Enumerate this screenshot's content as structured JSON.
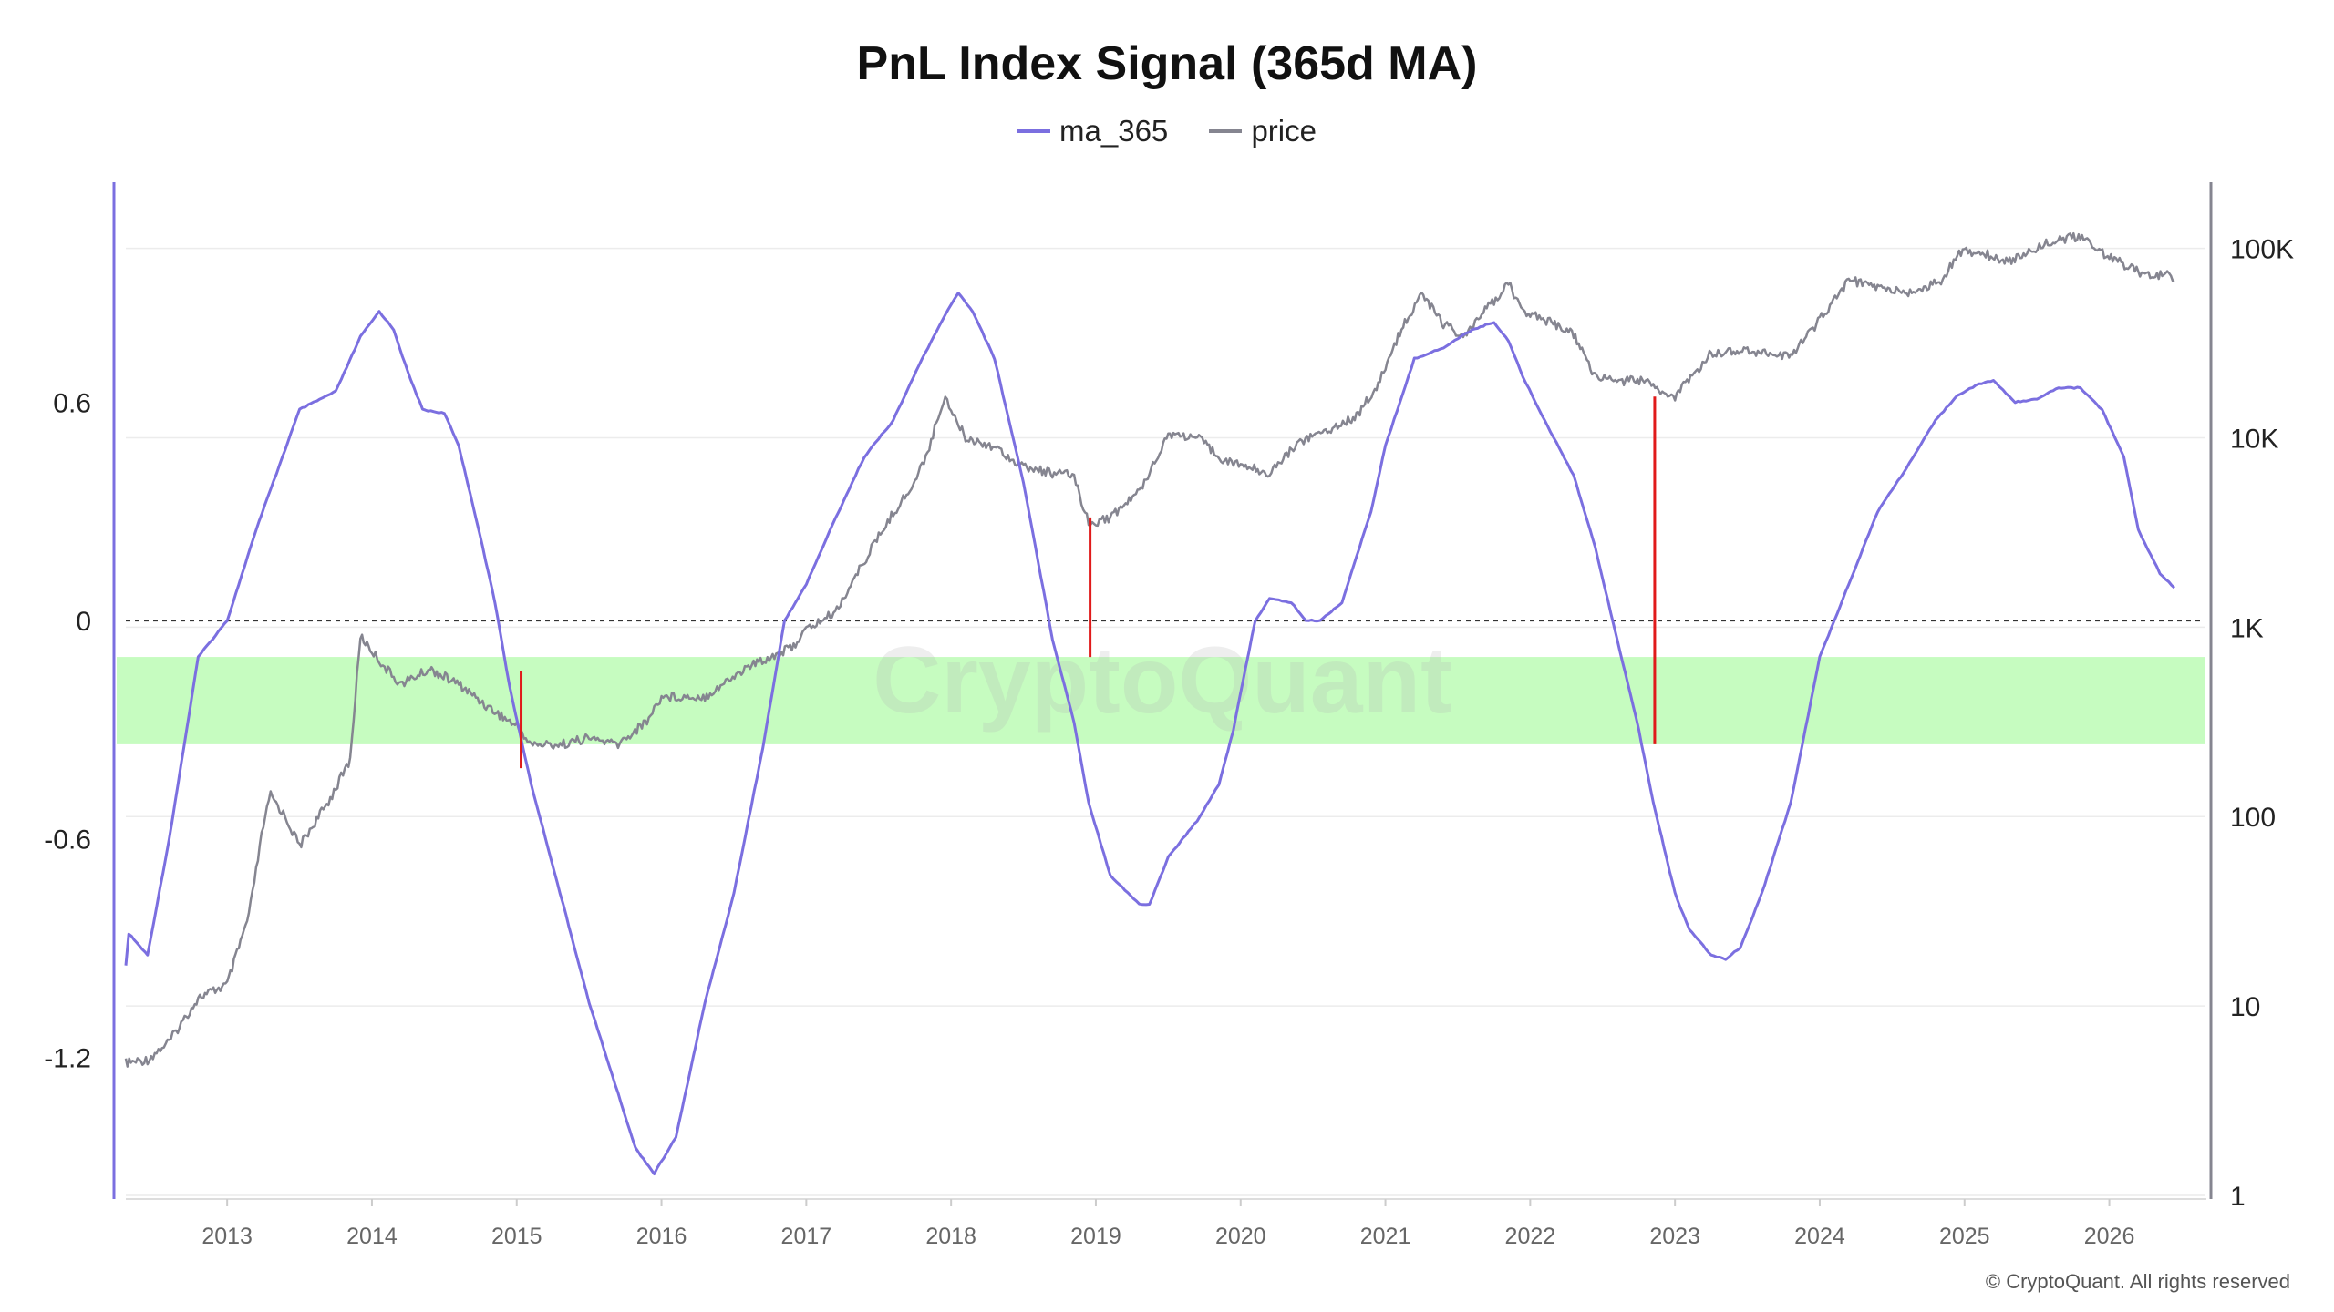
{
  "title": "PnL Index Signal (365d MA)",
  "legend": [
    {
      "name": "ma_365",
      "color": "#7b6fe0"
    },
    {
      "name": "price",
      "color": "#858590"
    }
  ],
  "watermark": "CryptoQuant",
  "copyright": "© CryptoQuant. All rights reserved",
  "colors": {
    "ma": "#7b6fe0",
    "price": "#858590",
    "band": "#c6fcc0",
    "signal": "#e01a1a"
  },
  "chart_data": {
    "type": "line",
    "x_ticks": [
      "2013",
      "2014",
      "2015",
      "2016",
      "2017",
      "2018",
      "2019",
      "2020",
      "2021",
      "2022",
      "2023",
      "2024",
      "2025",
      "2026"
    ],
    "y_left_ticks": [
      "0.6",
      "0",
      "-0.6",
      "-1.2"
    ],
    "y_right_ticks": [
      "100K",
      "10K",
      "1K",
      "100",
      "10",
      "1"
    ],
    "y_left_range": [
      -1.58,
      1.18
    ],
    "y_right_range": [
      1,
      200000
    ],
    "y_right_scale": "log",
    "zero_line": 0,
    "band": [
      -0.34,
      -0.1
    ],
    "grid": "horizontal",
    "legend_position": "top-center",
    "series": [
      {
        "name": "ma_365",
        "axis": "left",
        "x": [
          2012.3,
          2012.32,
          2012.45,
          2012.6,
          2012.8,
          2013.0,
          2013.2,
          2013.5,
          2013.6,
          2013.75,
          2013.92,
          2014.05,
          2014.15,
          2014.25,
          2014.35,
          2014.5,
          2014.6,
          2014.72,
          2014.85,
          2014.95,
          2015.1,
          2015.3,
          2015.5,
          2015.7,
          2015.82,
          2015.95,
          2016.1,
          2016.3,
          2016.5,
          2016.7,
          2016.85,
          2017.0,
          2017.2,
          2017.4,
          2017.6,
          2017.8,
          2018.0,
          2018.05,
          2018.15,
          2018.3,
          2018.5,
          2018.7,
          2018.85,
          2018.95,
          2019.1,
          2019.3,
          2019.37,
          2019.5,
          2019.7,
          2019.85,
          2019.95,
          2020.1,
          2020.2,
          2020.35,
          2020.45,
          2020.55,
          2020.7,
          2020.9,
          2021.0,
          2021.1,
          2021.2,
          2021.4,
          2021.6,
          2021.75,
          2021.85,
          2021.95,
          2022.1,
          2022.3,
          2022.45,
          2022.6,
          2022.75,
          2022.85,
          2023.0,
          2023.1,
          2023.25,
          2023.35,
          2023.45,
          2023.6,
          2023.8,
          2024.0,
          2024.2,
          2024.4,
          2024.6,
          2024.8,
          2024.95,
          2025.1,
          2025.2,
          2025.35,
          2025.5,
          2025.65,
          2025.8,
          2025.95,
          2026.1,
          2026.2,
          2026.35,
          2026.45
        ],
        "values": [
          -0.95,
          -0.86,
          -0.92,
          -0.6,
          -0.1,
          0.0,
          0.25,
          0.58,
          0.6,
          0.63,
          0.78,
          0.85,
          0.8,
          0.68,
          0.58,
          0.57,
          0.48,
          0.28,
          0.05,
          -0.18,
          -0.45,
          -0.75,
          -1.05,
          -1.3,
          -1.45,
          -1.52,
          -1.42,
          -1.05,
          -0.75,
          -0.35,
          0.0,
          0.1,
          0.28,
          0.45,
          0.55,
          0.72,
          0.87,
          0.9,
          0.85,
          0.72,
          0.38,
          -0.05,
          -0.28,
          -0.5,
          -0.7,
          -0.78,
          -0.78,
          -0.65,
          -0.55,
          -0.45,
          -0.3,
          0.0,
          0.06,
          0.05,
          0.0,
          0.0,
          0.05,
          0.3,
          0.48,
          0.6,
          0.72,
          0.75,
          0.8,
          0.82,
          0.77,
          0.67,
          0.55,
          0.4,
          0.2,
          -0.05,
          -0.3,
          -0.5,
          -0.75,
          -0.85,
          -0.92,
          -0.93,
          -0.9,
          -0.75,
          -0.5,
          -0.1,
          0.1,
          0.3,
          0.42,
          0.55,
          0.62,
          0.65,
          0.66,
          0.6,
          0.61,
          0.64,
          0.64,
          0.58,
          0.45,
          0.25,
          0.13,
          0.09
        ]
      },
      {
        "name": "price",
        "axis": "right",
        "x": [
          2012.3,
          2012.45,
          2012.6,
          2012.8,
          2013.0,
          2013.15,
          2013.25,
          2013.3,
          2013.4,
          2013.5,
          2013.7,
          2013.85,
          2013.92,
          2014.0,
          2014.1,
          2014.2,
          2014.4,
          2014.6,
          2014.8,
          2015.0,
          2015.1,
          2015.3,
          2015.5,
          2015.7,
          2015.9,
          2016.0,
          2016.3,
          2016.6,
          2016.9,
          2017.0,
          2017.2,
          2017.45,
          2017.6,
          2017.75,
          2017.85,
          2017.96,
          2018.0,
          2018.1,
          2018.3,
          2018.5,
          2018.7,
          2018.85,
          2018.95,
          2019.1,
          2019.3,
          2019.5,
          2019.7,
          2019.9,
          2020.0,
          2020.2,
          2020.4,
          2020.6,
          2020.8,
          2020.95,
          2021.1,
          2021.25,
          2021.4,
          2021.55,
          2021.7,
          2021.85,
          2021.95,
          2022.1,
          2022.3,
          2022.45,
          2022.6,
          2022.8,
          2022.9,
          2023.0,
          2023.25,
          2023.5,
          2023.8,
          2024.0,
          2024.2,
          2024.4,
          2024.6,
          2024.85,
          2024.95,
          2025.1,
          2025.3,
          2025.6,
          2025.8,
          2026.0,
          2026.2,
          2026.4,
          2026.45
        ],
        "values": [
          5,
          5.2,
          6.5,
          11,
          13,
          30,
          90,
          130,
          100,
          70,
          120,
          200,
          900,
          750,
          600,
          500,
          600,
          500,
          380,
          300,
          240,
          240,
          260,
          240,
          320,
          430,
          430,
          620,
          780,
          970,
          1200,
          2600,
          4000,
          5800,
          9000,
          17000,
          14000,
          10000,
          9000,
          7000,
          6500,
          6300,
          3500,
          3800,
          5200,
          10500,
          10000,
          7500,
          7200,
          6500,
          9500,
          11000,
          13000,
          19000,
          36000,
          58000,
          40000,
          34000,
          48000,
          65000,
          47000,
          42000,
          35000,
          21000,
          20000,
          20000,
          17000,
          16500,
          28000,
          29000,
          27000,
          42000,
          68000,
          62000,
          58000,
          67000,
          95000,
          96000,
          85000,
          110000,
          115000,
          90000,
          75000,
          72000,
          68000
        ]
      }
    ],
    "signals": [
      {
        "x": 2015.03,
        "ma": -0.14,
        "price": 180
      },
      {
        "x": 2018.96,
        "ma": -0.1,
        "price": 3800
      },
      {
        "x": 2022.86,
        "ma": -0.34,
        "price": 16500
      }
    ]
  }
}
